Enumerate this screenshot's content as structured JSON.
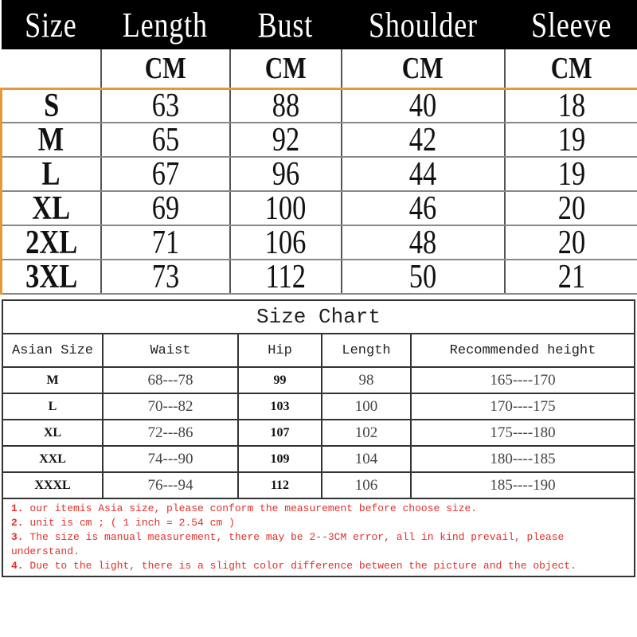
{
  "top_table": {
    "headers": [
      "Size",
      "Length",
      "Bust",
      "Shoulder",
      "Sleeve"
    ],
    "units": [
      "",
      "CM",
      "CM",
      "CM",
      "CM"
    ],
    "rows": [
      [
        "S",
        "63",
        "88",
        "40",
        "18"
      ],
      [
        "M",
        "65",
        "92",
        "42",
        "19"
      ],
      [
        "L",
        "67",
        "96",
        "44",
        "19"
      ],
      [
        "XL",
        "69",
        "100",
        "46",
        "20"
      ],
      [
        "2XL",
        "71",
        "106",
        "48",
        "20"
      ],
      [
        "3XL",
        "73",
        "112",
        "50",
        "21"
      ]
    ]
  },
  "size_chart": {
    "title": "Size Chart",
    "headers": [
      "Asian Size",
      "Waist",
      "Hip",
      "Length",
      "Recommended height"
    ],
    "rows": [
      [
        "M",
        "68---78",
        "99",
        "98",
        "165----170"
      ],
      [
        "L",
        "70---82",
        "103",
        "100",
        "170----175"
      ],
      [
        "XL",
        "72---86",
        "107",
        "102",
        "175----180"
      ],
      [
        "XXL",
        "74---90",
        "109",
        "104",
        "180----185"
      ],
      [
        "XXXL",
        "76---94",
        "112",
        "106",
        "185----190"
      ]
    ],
    "notes": [
      {
        "num": "1.",
        "text": "our itemis Asia size,  please conform the measurement before  choose size."
      },
      {
        "num": "2.",
        "text": "unit is cm ; ( 1 inch = 2.54 cm )"
      },
      {
        "num": "3.",
        "text": "The size is manual measurement, there may be 2--3CM error, all in kind prevail, please understand."
      },
      {
        "num": "4.",
        "text": "Due to the light, there is a slight color difference between the picture and the object."
      }
    ]
  },
  "colors": {
    "header_bg": "#000000",
    "accent_border": "#e59a3a",
    "note_text": "#e0302a"
  }
}
